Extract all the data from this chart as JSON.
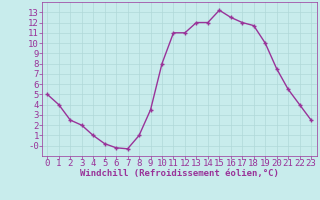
{
  "x": [
    0,
    1,
    2,
    3,
    4,
    5,
    6,
    7,
    8,
    9,
    10,
    11,
    12,
    13,
    14,
    15,
    16,
    17,
    18,
    19,
    20,
    21,
    22,
    23
  ],
  "y": [
    5.0,
    4.0,
    2.5,
    2.0,
    1.0,
    0.2,
    -0.2,
    -0.3,
    1.0,
    3.5,
    8.0,
    11.0,
    11.0,
    12.0,
    12.0,
    13.2,
    12.5,
    12.0,
    11.7,
    10.0,
    7.5,
    5.5,
    4.0,
    2.5
  ],
  "line_color": "#993399",
  "marker": "+",
  "marker_size": 3,
  "background_color": "#c8ecec",
  "grid_color": "#b0d8d8",
  "xlabel": "Windchill (Refroidissement éolien,°C)",
  "xlabel_color": "#993399",
  "tick_color": "#993399",
  "ylim": [
    -1,
    14
  ],
  "xlim": [
    -0.5,
    23.5
  ],
  "yticks": [
    0,
    1,
    2,
    3,
    4,
    5,
    6,
    7,
    8,
    9,
    10,
    11,
    12,
    13
  ],
  "ytick_labels": [
    "-0",
    "1",
    "2",
    "3",
    "4",
    "5",
    "6",
    "7",
    "8",
    "9",
    "10",
    "11",
    "12",
    "13"
  ],
  "xticks": [
    0,
    1,
    2,
    3,
    4,
    5,
    6,
    7,
    8,
    9,
    10,
    11,
    12,
    13,
    14,
    15,
    16,
    17,
    18,
    19,
    20,
    21,
    22,
    23
  ],
  "font_size": 6.5,
  "line_width": 1.0,
  "markeredgewidth": 1.0
}
